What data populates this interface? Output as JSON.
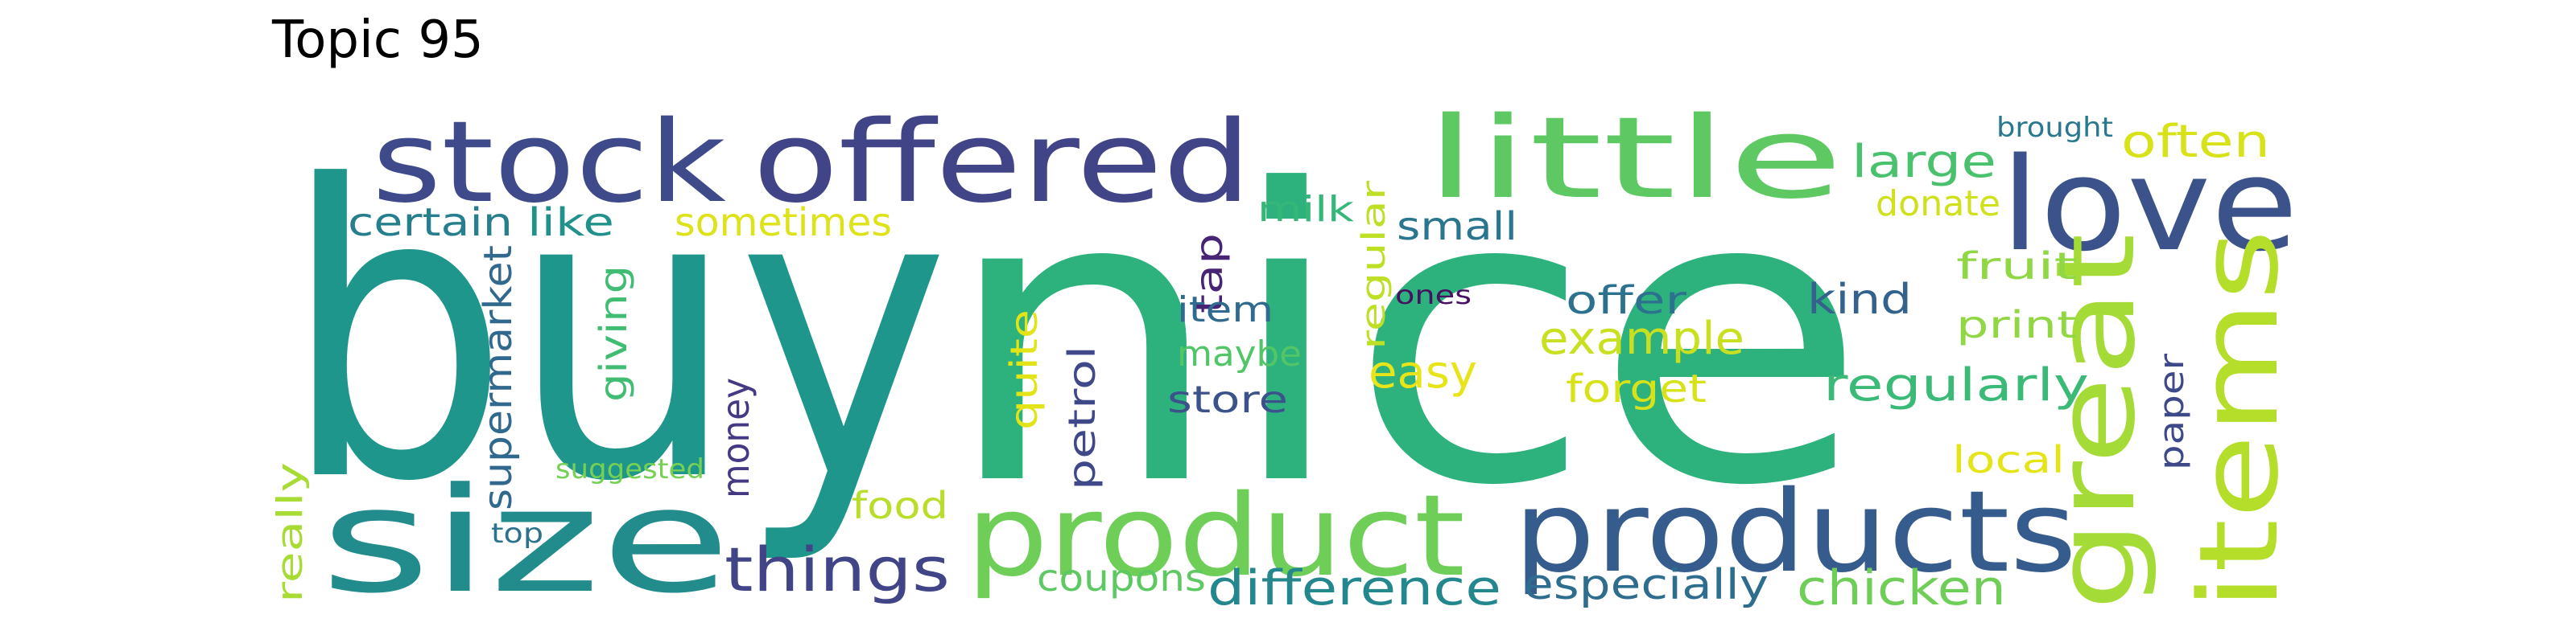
{
  "title": "Topic 95",
  "words": [
    {
      "text": "buy",
      "color": "#1f968b"
    },
    {
      "text": "nice",
      "color": "#2db27d"
    },
    {
      "text": "stock",
      "color": "#3e4a89"
    },
    {
      "text": "offered",
      "color": "#414487"
    },
    {
      "text": "little",
      "color": "#5ec962"
    },
    {
      "text": "love",
      "color": "#3b528b"
    },
    {
      "text": "size",
      "color": "#228c8d"
    },
    {
      "text": "product",
      "color": "#6ece58"
    },
    {
      "text": "products",
      "color": "#365c8d"
    },
    {
      "text": "great",
      "color": "#a5db36"
    },
    {
      "text": "items",
      "color": "#b5de2b"
    },
    {
      "text": "large",
      "color": "#4ac16d"
    },
    {
      "text": "often",
      "color": "#d8e219"
    },
    {
      "text": "brought",
      "color": "#2a788e"
    },
    {
      "text": "donate",
      "color": "#d0e11c"
    },
    {
      "text": "certain",
      "color": "#277f8e"
    },
    {
      "text": "like",
      "color": "#21918c"
    },
    {
      "text": "sometimes",
      "color": "#dde318"
    },
    {
      "text": "milk",
      "color": "#35b779"
    },
    {
      "text": "small",
      "color": "#2a768e"
    },
    {
      "text": "tap",
      "color": "#482475"
    },
    {
      "text": "regular",
      "color": "#bddf26"
    },
    {
      "text": "fruit",
      "color": "#8fd744"
    },
    {
      "text": "supermarket",
      "color": "#31688e"
    },
    {
      "text": "giving",
      "color": "#40bd72"
    },
    {
      "text": "item",
      "color": "#306a8e"
    },
    {
      "text": "ones",
      "color": "#471063"
    },
    {
      "text": "offer",
      "color": "#2c728e"
    },
    {
      "text": "kind",
      "color": "#33638d"
    },
    {
      "text": "print",
      "color": "#90d743"
    },
    {
      "text": "quite",
      "color": "#e2e418"
    },
    {
      "text": "example",
      "color": "#c8e020"
    },
    {
      "text": "maybe",
      "color": "#52c569"
    },
    {
      "text": "easy",
      "color": "#e7e419"
    },
    {
      "text": "regularly",
      "color": "#3aba76"
    },
    {
      "text": "petrol",
      "color": "#3f4889"
    },
    {
      "text": "store",
      "color": "#3b528b"
    },
    {
      "text": "forget",
      "color": "#d8e219"
    },
    {
      "text": "paper",
      "color": "#3e4989"
    },
    {
      "text": "money",
      "color": "#443983"
    },
    {
      "text": "local",
      "color": "#e5e419"
    },
    {
      "text": "suggested",
      "color": "#75d054"
    },
    {
      "text": "really",
      "color": "#a8db34"
    },
    {
      "text": "food",
      "color": "#b8de29"
    },
    {
      "text": "top",
      "color": "#2c728e"
    },
    {
      "text": "things",
      "color": "#414487"
    },
    {
      "text": "coupons",
      "color": "#5ec962"
    },
    {
      "text": "difference",
      "color": "#24878e"
    },
    {
      "text": "especially",
      "color": "#2e6d8e"
    },
    {
      "text": "chicken",
      "color": "#6ece58"
    }
  ]
}
